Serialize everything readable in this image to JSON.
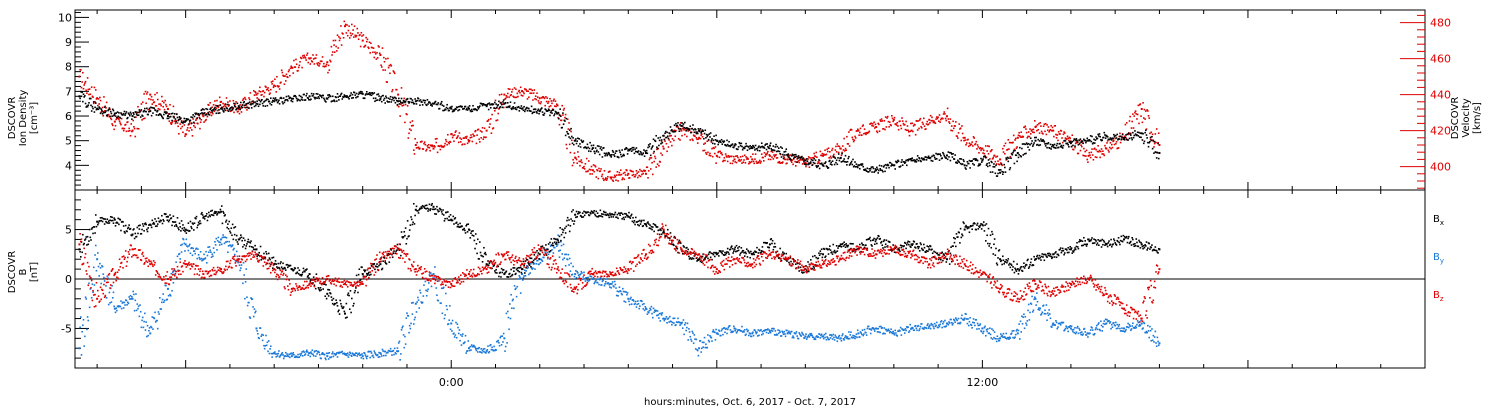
{
  "colors": {
    "black": "#000000",
    "red": "#e00000",
    "blue": "#1a78d8"
  },
  "chart_data": [
    {
      "type": "scatter",
      "panel": "plasma",
      "ylabel_lines": [
        "DSCOVR",
        "Ion Density",
        "[cm⁻³]"
      ],
      "ylabel_right_lines": [
        "DSCOVR",
        "Velocity",
        "[km/s]"
      ],
      "ylim": [
        3,
        10.3
      ],
      "ylim_right": [
        387,
        487
      ],
      "yticks": [
        4,
        5,
        6,
        7,
        8,
        9,
        10
      ],
      "yticks_right": [
        400,
        420,
        440,
        460,
        480
      ],
      "x_unit": "hours relative to Oct. 6, 2017 24:00 (0:00 Oct. 7)",
      "xlim": [
        -8.5,
        22
      ],
      "series": [
        {
          "axis": "left",
          "color": "black",
          "x": [
            -8.4,
            -8.0,
            -7.6,
            -7.2,
            -6.8,
            -6.4,
            -6.0,
            -5.6,
            -5.2,
            -4.8,
            -4.4,
            -4.0,
            -3.6,
            -3.2,
            -2.8,
            -2.4,
            -2.0,
            -1.6,
            -1.2,
            -0.8,
            -0.4,
            0.0,
            0.4,
            0.8,
            1.2,
            1.6,
            2.0,
            2.4,
            2.8,
            3.2,
            3.6,
            4.0,
            4.4,
            4.8,
            5.2,
            5.6,
            6.0,
            6.4,
            6.8,
            7.2,
            7.6,
            8.0,
            8.4,
            8.8,
            9.2,
            9.6,
            10.0,
            10.4,
            10.8,
            11.2,
            11.6,
            12.0,
            12.4,
            12.8,
            13.2,
            13.6,
            14.0,
            14.4,
            14.8,
            15.2,
            15.6,
            16.0
          ],
          "y": [
            6.8,
            6.3,
            6.1,
            6.0,
            6.2,
            6.0,
            5.8,
            6.1,
            6.3,
            6.4,
            6.5,
            6.6,
            6.7,
            6.8,
            6.7,
            6.8,
            6.9,
            6.7,
            6.6,
            6.6,
            6.5,
            6.3,
            6.3,
            6.4,
            6.5,
            6.3,
            6.2,
            6.1,
            5.0,
            4.7,
            4.4,
            4.6,
            4.5,
            5.2,
            5.6,
            5.4,
            5.0,
            4.8,
            4.7,
            4.8,
            4.4,
            4.2,
            4.0,
            4.3,
            4.0,
            3.8,
            4.0,
            4.2,
            4.3,
            4.4,
            4.0,
            4.2,
            3.7,
            4.5,
            5.0,
            4.8,
            4.9,
            5.0,
            5.2,
            5.1,
            5.3,
            4.5
          ]
        },
        {
          "axis": "right",
          "color": "red",
          "x": [
            -8.4,
            -8.0,
            -7.6,
            -7.2,
            -6.8,
            -6.4,
            -6.0,
            -5.6,
            -5.2,
            -4.8,
            -4.4,
            -4.0,
            -3.6,
            -3.2,
            -2.8,
            -2.4,
            -2.0,
            -1.6,
            -1.2,
            -0.8,
            -0.4,
            0.0,
            0.4,
            0.8,
            1.2,
            1.6,
            2.0,
            2.4,
            2.8,
            3.2,
            3.6,
            4.0,
            4.4,
            4.8,
            5.2,
            5.6,
            6.0,
            6.4,
            6.8,
            7.2,
            7.6,
            8.0,
            8.4,
            8.8,
            9.2,
            9.6,
            10.0,
            10.4,
            10.8,
            11.2,
            11.6,
            12.0,
            12.4,
            12.8,
            13.2,
            13.6,
            14.0,
            14.4,
            14.8,
            15.2,
            15.6,
            16.0
          ],
          "y": [
            450,
            438,
            425,
            420,
            440,
            432,
            418,
            428,
            436,
            432,
            440,
            445,
            455,
            460,
            458,
            478,
            470,
            462,
            440,
            412,
            410,
            418,
            414,
            420,
            440,
            442,
            438,
            434,
            405,
            398,
            394,
            396,
            396,
            410,
            420,
            416,
            406,
            404,
            404,
            406,
            404,
            402,
            406,
            410,
            420,
            422,
            426,
            420,
            426,
            428,
            416,
            410,
            404,
            416,
            422,
            420,
            414,
            406,
            410,
            416,
            432,
            412
          ]
        }
      ]
    },
    {
      "type": "scatter",
      "panel": "magnetic",
      "ylabel_lines": [
        "DSCOVR",
        "B",
        "[nT]"
      ],
      "ylim": [
        -9,
        9
      ],
      "yticks": [
        -5,
        0,
        5
      ],
      "zero_line": true,
      "legend_position": "right",
      "legend": [
        {
          "label": "B",
          "sub": "x",
          "color": "black"
        },
        {
          "label": "B",
          "sub": "y",
          "color": "blue"
        },
        {
          "label": "B",
          "sub": "z",
          "color": "red"
        }
      ],
      "xlim": [
        -8.5,
        22
      ],
      "xtick_labels": [
        {
          "x": 0,
          "label": "0:00"
        },
        {
          "x": 12,
          "label": "12:00"
        }
      ],
      "xlabel": "hours:minutes, Oct.  6, 2017 - Oct.  7, 2017",
      "series": [
        {
          "name": "Bx",
          "color": "black",
          "x": [
            -8.4,
            -8.0,
            -7.6,
            -7.2,
            -6.8,
            -6.4,
            -6.0,
            -5.6,
            -5.2,
            -4.8,
            -4.4,
            -4.0,
            -3.6,
            -3.2,
            -2.8,
            -2.4,
            -2.0,
            -1.6,
            -1.2,
            -0.8,
            -0.4,
            0.0,
            0.4,
            0.8,
            1.2,
            1.6,
            2.0,
            2.4,
            2.8,
            3.2,
            3.6,
            4.0,
            4.4,
            4.8,
            5.2,
            5.6,
            6.0,
            6.4,
            6.8,
            7.2,
            7.6,
            8.0,
            8.4,
            8.8,
            9.2,
            9.6,
            10.0,
            10.4,
            10.8,
            11.2,
            11.6,
            12.0,
            12.4,
            12.8,
            13.2,
            13.6,
            14.0,
            14.4,
            14.8,
            15.2,
            15.6,
            16.0
          ],
          "y": [
            3.0,
            5.8,
            6.0,
            4.5,
            5.5,
            6.3,
            5.0,
            6.2,
            6.8,
            4.0,
            3.0,
            1.5,
            1.0,
            0.5,
            -1.5,
            -3.5,
            0.5,
            1.5,
            3.0,
            7.0,
            7.3,
            6.0,
            5.0,
            1.5,
            0.5,
            1.0,
            2.5,
            4.0,
            6.5,
            6.7,
            6.5,
            6.3,
            5.5,
            4.8,
            3.0,
            2.0,
            2.5,
            3.0,
            2.5,
            3.5,
            2.0,
            1.0,
            2.5,
            3.5,
            3.0,
            4.0,
            3.0,
            3.5,
            3.0,
            2.0,
            5.0,
            5.5,
            2.0,
            1.0,
            2.0,
            2.5,
            3.0,
            4.0,
            3.5,
            4.0,
            3.5,
            3.0
          ]
        },
        {
          "name": "By",
          "color": "blue",
          "x": [
            -8.4,
            -8.0,
            -7.6,
            -7.2,
            -6.8,
            -6.4,
            -6.0,
            -5.6,
            -5.2,
            -4.8,
            -4.4,
            -4.0,
            -3.6,
            -3.2,
            -2.8,
            -2.4,
            -2.0,
            -1.6,
            -1.2,
            -0.8,
            -0.4,
            0.0,
            0.4,
            0.8,
            1.2,
            1.6,
            2.0,
            2.4,
            2.8,
            3.2,
            3.6,
            4.0,
            4.4,
            4.8,
            5.2,
            5.6,
            6.0,
            6.4,
            6.8,
            7.2,
            7.6,
            8.0,
            8.4,
            8.8,
            9.2,
            9.6,
            10.0,
            10.4,
            10.8,
            11.2,
            11.6,
            12.0,
            12.4,
            12.8,
            13.2,
            13.6,
            14.0,
            14.4,
            14.8,
            15.2,
            15.6,
            16.0
          ],
          "y": [
            -7.0,
            2.0,
            -3.0,
            -2.0,
            -5.5,
            -1.0,
            3.5,
            2.0,
            4.0,
            2.0,
            -5.0,
            -7.5,
            -7.8,
            -7.5,
            -7.8,
            -7.6,
            -7.8,
            -7.5,
            -7.3,
            -2.5,
            0.5,
            -4.5,
            -7.0,
            -7.3,
            -6.0,
            0.5,
            2.0,
            3.5,
            0.5,
            0.0,
            -0.5,
            -2.0,
            -3.0,
            -4.0,
            -4.5,
            -7.0,
            -5.5,
            -5.0,
            -5.5,
            -5.3,
            -5.5,
            -5.8,
            -5.8,
            -6.0,
            -5.5,
            -5.0,
            -5.5,
            -5.0,
            -4.8,
            -4.5,
            -4.0,
            -5.0,
            -6.0,
            -5.5,
            -2.0,
            -4.5,
            -5.0,
            -5.5,
            -4.5,
            -5.0,
            -4.5,
            -6.5
          ]
        },
        {
          "name": "Bz",
          "color": "red",
          "x": [
            -8.4,
            -8.0,
            -7.6,
            -7.2,
            -6.8,
            -6.4,
            -6.0,
            -5.6,
            -5.2,
            -4.8,
            -4.4,
            -4.0,
            -3.6,
            -3.2,
            -2.8,
            -2.4,
            -2.0,
            -1.6,
            -1.2,
            -0.8,
            -0.4,
            0.0,
            0.4,
            0.8,
            1.2,
            1.6,
            2.0,
            2.4,
            2.8,
            3.2,
            3.6,
            4.0,
            4.4,
            4.8,
            5.2,
            5.6,
            6.0,
            6.4,
            6.8,
            7.2,
            7.6,
            8.0,
            8.4,
            8.8,
            9.2,
            9.6,
            10.0,
            10.4,
            10.8,
            11.2,
            11.6,
            12.0,
            12.4,
            12.8,
            13.2,
            13.6,
            14.0,
            14.4,
            14.8,
            15.2,
            15.6,
            16.0
          ],
          "y": [
            3.5,
            -2.0,
            0.5,
            3.0,
            1.5,
            0.0,
            1.5,
            0.5,
            1.0,
            2.0,
            2.5,
            1.0,
            -1.0,
            -0.5,
            0.0,
            -0.5,
            -0.5,
            2.0,
            3.0,
            1.0,
            0.0,
            -0.5,
            0.5,
            1.0,
            2.5,
            1.5,
            3.0,
            1.0,
            -1.0,
            0.5,
            0.5,
            1.0,
            2.5,
            5.0,
            3.0,
            2.5,
            1.0,
            2.0,
            1.5,
            2.5,
            2.0,
            1.0,
            1.5,
            2.0,
            3.0,
            2.5,
            3.0,
            2.5,
            1.5,
            2.5,
            1.5,
            0.5,
            -1.0,
            -2.0,
            -0.5,
            -1.5,
            -0.5,
            0.0,
            -1.5,
            -3.0,
            -4.0,
            1.0
          ]
        }
      ]
    }
  ]
}
